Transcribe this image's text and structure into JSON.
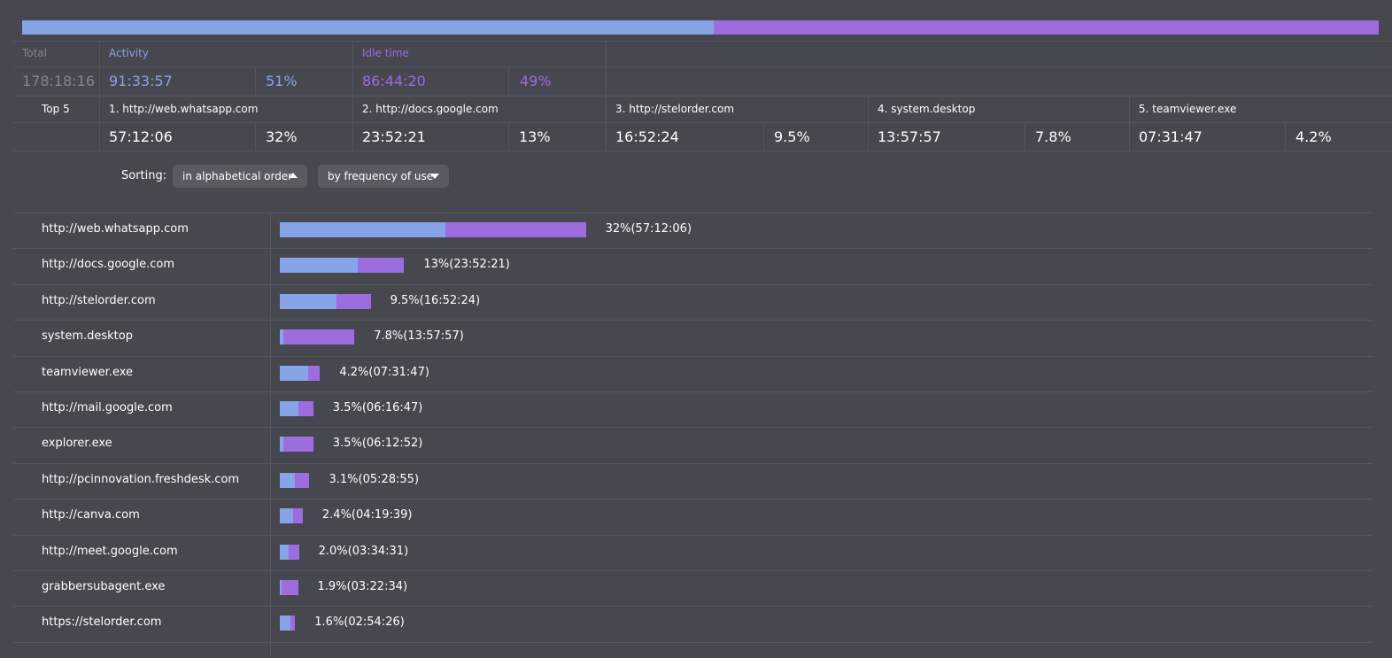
{
  "summary": {
    "total": {
      "label": "Total",
      "time": "178:18:16"
    },
    "activity": {
      "label": "Activity",
      "time": "91:33:57",
      "percent": {
        "value": 51,
        "label": "51%"
      }
    },
    "idle": {
      "label": "Idle time",
      "time": "86:44:20",
      "percent": {
        "value": 49,
        "label": "49%"
      }
    }
  },
  "top5": {
    "label": "Top 5",
    "items": [
      {
        "name": "1. http://web.whatsapp.com",
        "time": "57:12:06",
        "percent": "32%"
      },
      {
        "name": "2. http://docs.google.com",
        "time": "23:52:21",
        "percent": "13%"
      },
      {
        "name": "3. http://stelorder.com",
        "time": "16:52:24",
        "percent": "9.5%"
      },
      {
        "name": "4. system.desktop",
        "time": "13:57:57",
        "percent": "7.8%"
      },
      {
        "name": "5. teamviewer.exe",
        "time": "07:31:47",
        "percent": "4.2%"
      }
    ]
  },
  "sorting": {
    "label": "Sorting:",
    "buttons": [
      "in alphabetical order",
      "by frequency of use"
    ]
  },
  "rows": [
    {
      "name": "http://web.whatsapp.com",
      "percent": 32,
      "label": "32%(57:12:06)",
      "activity_share": 54
    },
    {
      "name": "http://docs.google.com",
      "percent": 13,
      "label": "13%(23:52:21)",
      "activity_share": 63
    },
    {
      "name": "http://stelorder.com",
      "percent": 9.5,
      "label": "9.5%(16:52:24)",
      "activity_share": 62
    },
    {
      "name": "system.desktop",
      "percent": 7.8,
      "label": "7.8%(13:57:57)",
      "activity_share": 5
    },
    {
      "name": "teamviewer.exe",
      "percent": 4.2,
      "label": "4.2%(07:31:47)",
      "activity_share": 70
    },
    {
      "name": "http://mail.google.com",
      "percent": 3.5,
      "label": "3.5%(06:16:47)",
      "activity_share": 55
    },
    {
      "name": "explorer.exe",
      "percent": 3.5,
      "label": "3.5%(06:12:52)",
      "activity_share": 10
    },
    {
      "name": "http://pcinnovation.freshdesk.com",
      "percent": 3.1,
      "label": "3.1%(05:28:55)",
      "activity_share": 50
    },
    {
      "name": "http://canva.com",
      "percent": 2.4,
      "label": "2.4%(04:19:39)",
      "activity_share": 58
    },
    {
      "name": "http://meet.google.com",
      "percent": 2.0,
      "label": "2.0%(03:34:31)",
      "activity_share": 45
    },
    {
      "name": "grabbersubagent.exe",
      "percent": 1.9,
      "label": "1.9%(03:22:34)",
      "activity_share": 10
    },
    {
      "name": "https://stelorder.com",
      "percent": 1.6,
      "label": "1.6%(02:54:26)",
      "activity_share": 72
    }
  ]
}
